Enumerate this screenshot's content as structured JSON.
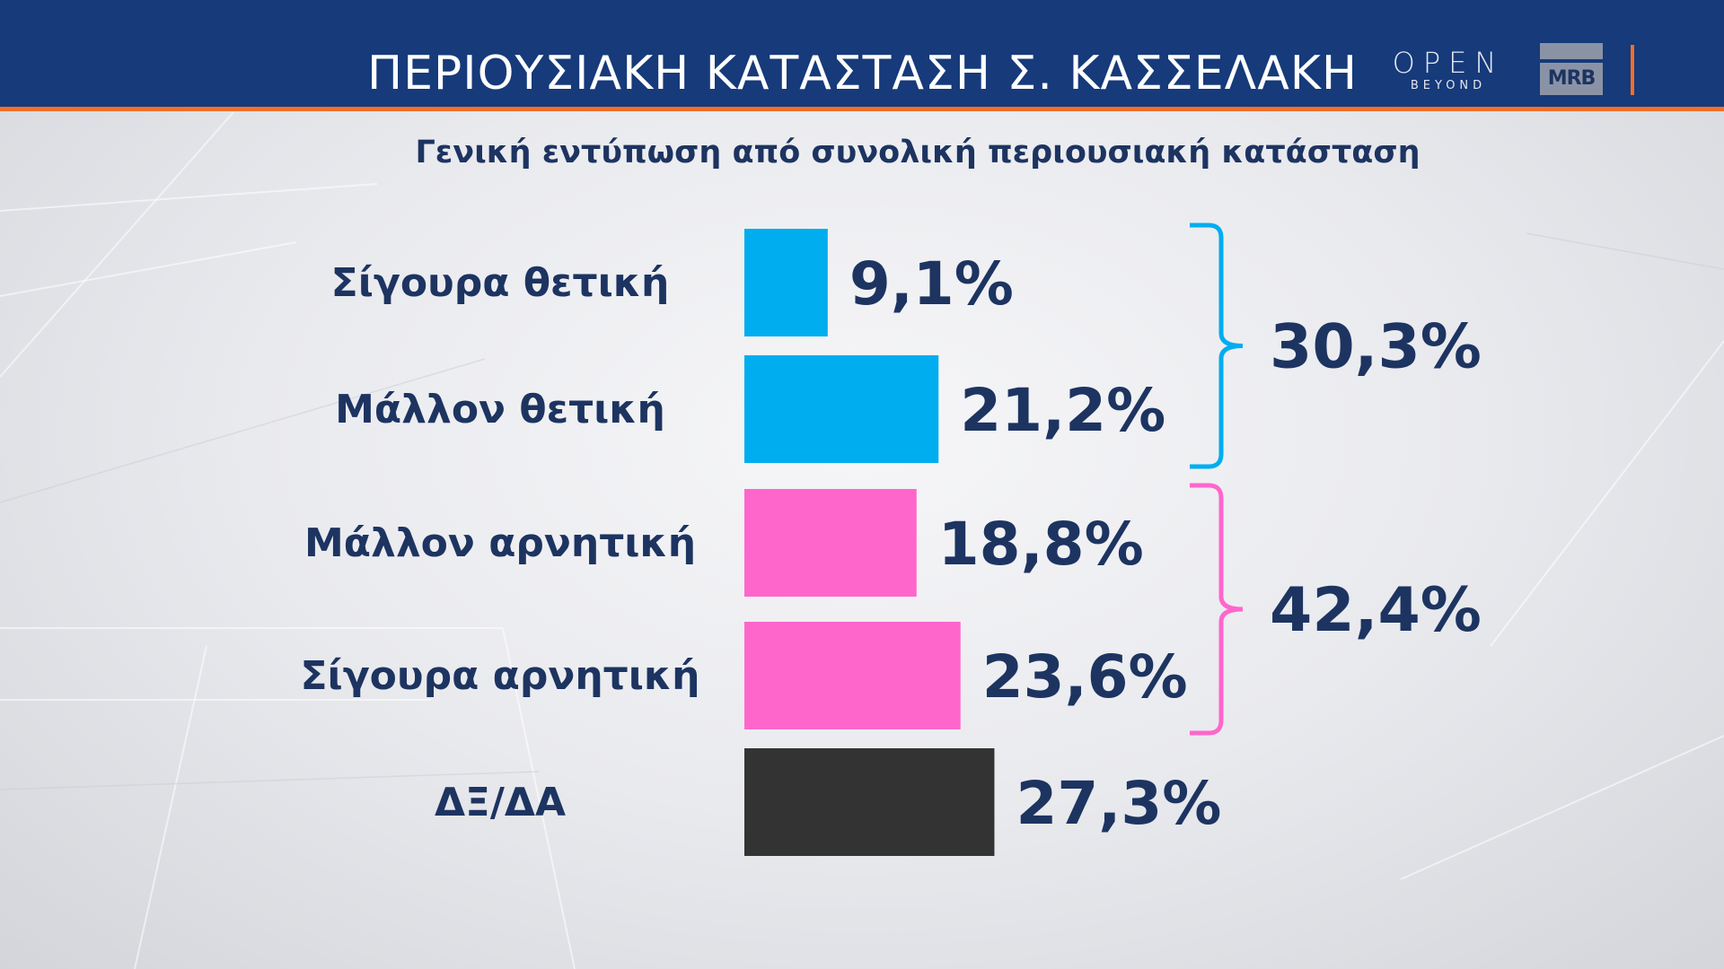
{
  "header": {
    "title": "ΠΕΡΙΟΥΣΙΑΚΗ ΚΑΤΑΣΤΑΣΗ  Σ. ΚΑΣΣΕΛΑΚΗ",
    "channel_logo": "OPEN",
    "channel_logo_sub": "BEYOND",
    "pollster_logo": "MRB"
  },
  "colors": {
    "header_bg": "#163a7a",
    "accent": "#f06f2a",
    "text": "#1d3461",
    "positive": "#00adef",
    "negative": "#ff66cc",
    "dk": "#333333"
  },
  "chart_data": {
    "type": "bar",
    "orientation": "horizontal",
    "title": "Γενική εντύπωση από συνολική περιουσιακή κατάσταση",
    "categories": [
      "Σίγουρα θετική",
      "Μάλλον θετική",
      "Μάλλον αρνητική",
      "Σίγουρα αρνητική",
      "ΔΞ/ΔΑ"
    ],
    "values": [
      9.1,
      21.2,
      18.8,
      23.6,
      27.3
    ],
    "value_labels": [
      "9,1%",
      "21,2%",
      "18,8%",
      "23,6%",
      "27,3%"
    ],
    "bar_colors": [
      "#00adef",
      "#00adef",
      "#ff66cc",
      "#ff66cc",
      "#333333"
    ],
    "groups": [
      {
        "members": [
          0,
          1
        ],
        "total": 30.3,
        "label": "30,3%",
        "color": "#00adef"
      },
      {
        "members": [
          2,
          3
        ],
        "total": 42.4,
        "label": "42,4%",
        "color": "#ff66cc"
      }
    ],
    "xlim": [
      0,
      100
    ],
    "grid": false,
    "legend": "none"
  }
}
